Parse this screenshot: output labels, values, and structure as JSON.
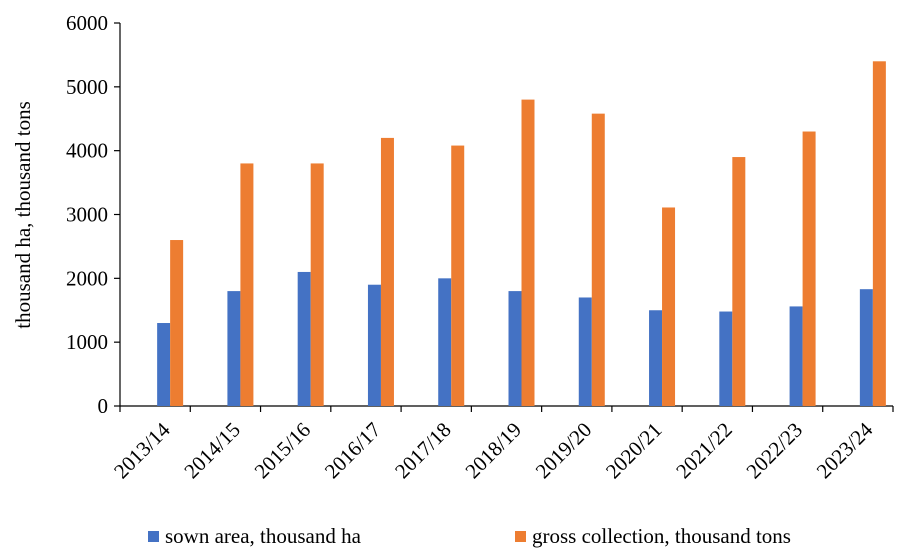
{
  "chart_data": {
    "type": "bar",
    "ylabel": "thousand ha, thousand tons",
    "xlabel": "",
    "ylim": [
      0,
      6000
    ],
    "yticks": [
      0,
      1000,
      2000,
      3000,
      4000,
      5000,
      6000
    ],
    "grid": false,
    "legend_position": "bottom",
    "categories": [
      "2013/14",
      "2014/15",
      "2015/16",
      "2016/17",
      "2017/18",
      "2018/19",
      "2019/20",
      "2020/21",
      "2021/22",
      "2022/23",
      "2023/24"
    ],
    "series": [
      {
        "name": "sown area, thousand ha",
        "color": "#4472C4",
        "values": [
          1300,
          1800,
          2100,
          1900,
          2000,
          1800,
          1700,
          1500,
          1480,
          1560,
          1830
        ]
      },
      {
        "name": "gross collection, thousand tons",
        "color": "#ED7D31",
        "values": [
          2600,
          3800,
          3800,
          4200,
          4080,
          4800,
          4580,
          3110,
          3900,
          4300,
          5400
        ]
      }
    ]
  }
}
